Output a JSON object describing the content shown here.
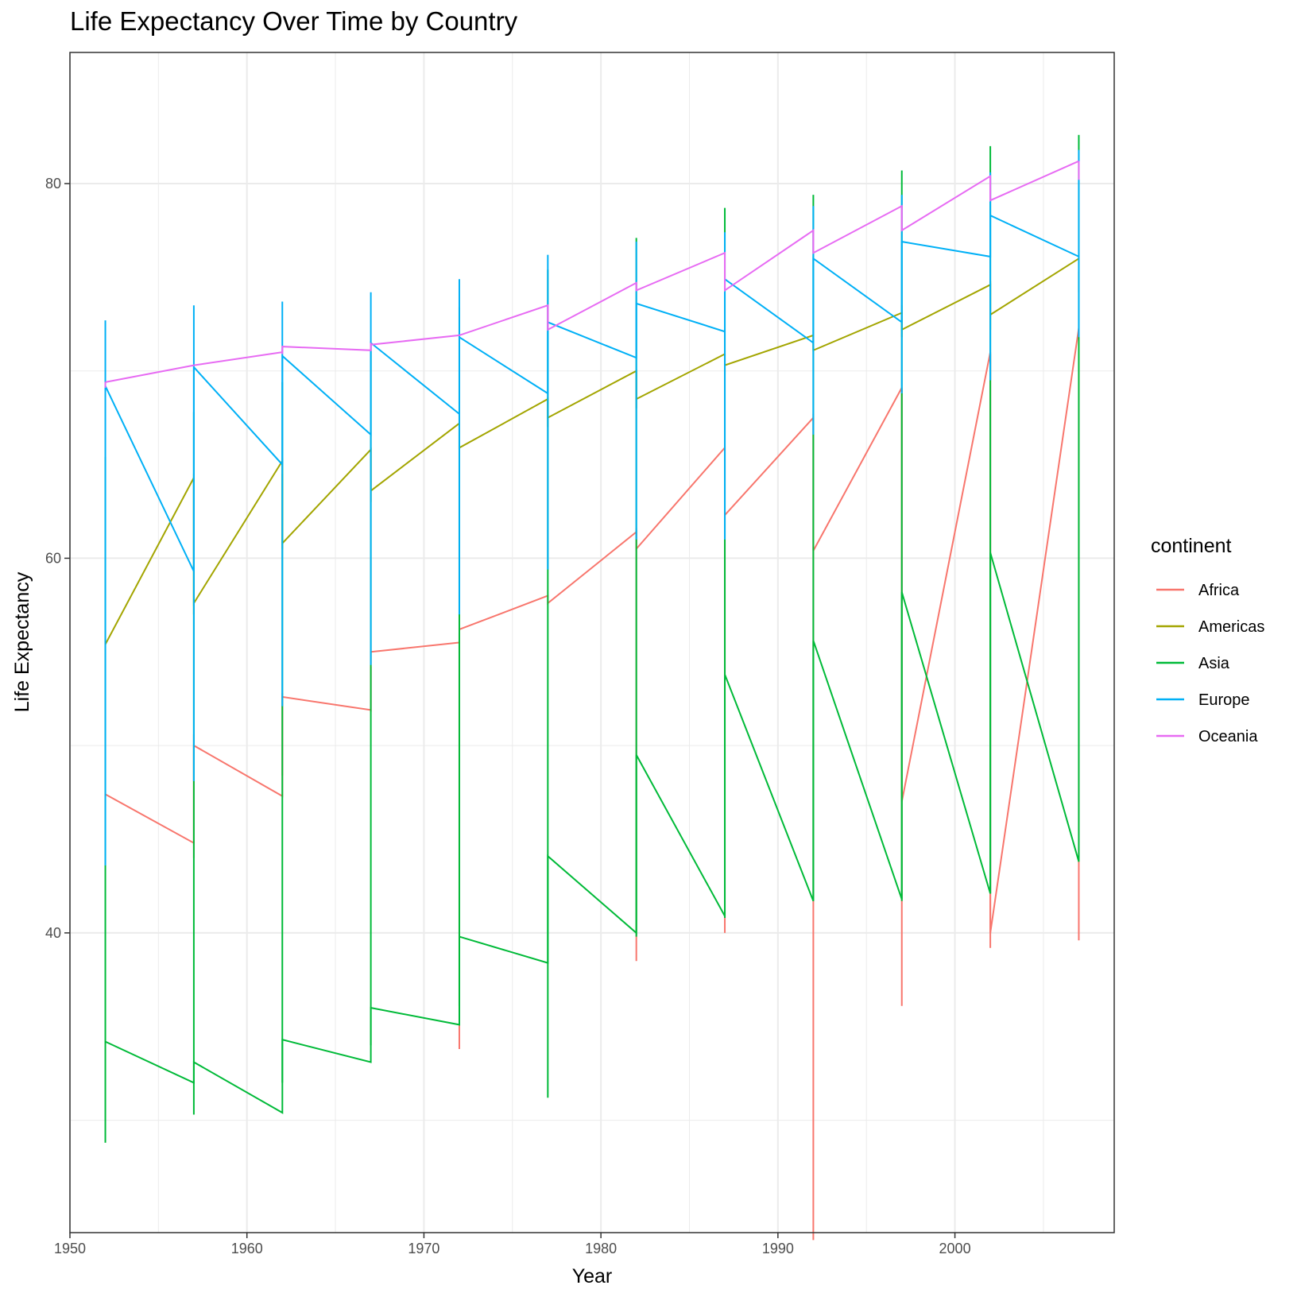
{
  "chart_data": {
    "type": "line",
    "title": "Life Expectancy Over Time by Country",
    "xlabel": "Year",
    "ylabel": "Life Expectancy",
    "xlim": [
      1950,
      2009
    ],
    "ylim": [
      24,
      87
    ],
    "x_ticks": [
      1950,
      1960,
      1970,
      1980,
      1990,
      2000
    ],
    "y_ticks": [
      40,
      60,
      80
    ],
    "grid": true,
    "legend": {
      "title": "continent",
      "position": "right"
    },
    "x": [
      1952,
      1957,
      1962,
      1967,
      1972,
      1977,
      1982,
      1987,
      1992,
      1997,
      2002,
      2007
    ],
    "series": [
      {
        "name": "Africa",
        "color": "#F8766D",
        "spans": [
          [
            47.0,
            47.0
          ],
          [
            44.0,
            50.6
          ],
          [
            48.4,
            52.8
          ],
          [
            51.8,
            54.2
          ],
          [
            33.8,
            56.0
          ],
          [
            57.6,
            57.6
          ],
          [
            38.5,
            61.6
          ],
          [
            40.0,
            66.0
          ],
          [
            23.6,
            67.7
          ],
          [
            36.1,
            69.0
          ],
          [
            39.2,
            70.9
          ],
          [
            39.6,
            72.3
          ]
        ],
        "path": [
          [
            1952,
            47.4
          ],
          [
            1957,
            44.8
          ],
          [
            1957,
            50.0
          ],
          [
            1962,
            47.3
          ],
          [
            1962,
            52.6
          ],
          [
            1967,
            51.9
          ],
          [
            1967,
            55.0
          ],
          [
            1972,
            55.5
          ],
          [
            1972,
            56.2
          ],
          [
            1977,
            58.0
          ],
          [
            1977,
            57.6
          ],
          [
            1982,
            61.4
          ],
          [
            1982,
            60.5
          ],
          [
            1987,
            65.9
          ],
          [
            1987,
            62.3
          ],
          [
            1992,
            67.5
          ],
          [
            1992,
            60.4
          ],
          [
            1997,
            69.1
          ],
          [
            1997,
            47.0
          ],
          [
            2002,
            71.0
          ],
          [
            2002,
            40.0
          ],
          [
            2007,
            72.3
          ],
          [
            2007,
            44.3
          ]
        ]
      },
      {
        "name": "Americas",
        "color": "#A3A500",
        "spans": [
          [
            54.5,
            54.5
          ],
          [
            57.0,
            64.5
          ],
          [
            60.5,
            64.5
          ],
          [
            63.0,
            65.9
          ],
          [
            65.8,
            67.2
          ],
          [
            67.0,
            68.6
          ],
          [
            68.0,
            70.0
          ],
          [
            69.8,
            70.9
          ],
          [
            71.1,
            71.6
          ],
          [
            71.8,
            73.5
          ],
          [
            72.2,
            74.8
          ],
          [
            74.2,
            75.3
          ]
        ],
        "path": [
          [
            1952,
            55.4
          ],
          [
            1957,
            64.3
          ],
          [
            1957,
            57.6
          ],
          [
            1962,
            65.2
          ],
          [
            1962,
            60.8
          ],
          [
            1967,
            65.8
          ],
          [
            1967,
            63.6
          ],
          [
            1972,
            67.2
          ],
          [
            1972,
            65.9
          ],
          [
            1977,
            68.5
          ],
          [
            1977,
            67.5
          ],
          [
            1982,
            70.0
          ],
          [
            1982,
            68.5
          ],
          [
            1987,
            70.9
          ],
          [
            1987,
            70.3
          ],
          [
            1992,
            71.9
          ],
          [
            1992,
            71.1
          ],
          [
            1997,
            73.1
          ],
          [
            1997,
            72.2
          ],
          [
            2002,
            74.6
          ],
          [
            2002,
            73.0
          ],
          [
            2007,
            76.0
          ]
        ]
      },
      {
        "name": "Asia",
        "color": "#00BA38",
        "spans": [
          [
            28.8,
            65.4
          ],
          [
            30.3,
            67.8
          ],
          [
            32.0,
            69.4
          ],
          [
            34.0,
            71.4
          ],
          [
            36.1,
            73.4
          ],
          [
            31.2,
            75.4
          ],
          [
            39.8,
            77.1
          ],
          [
            40.8,
            78.7
          ],
          [
            41.7,
            79.4
          ],
          [
            41.7,
            80.7
          ],
          [
            42.1,
            82.0
          ],
          [
            43.8,
            82.6
          ]
        ],
        "path": [
          [
            1952,
            34.2
          ],
          [
            1957,
            32.0
          ],
          [
            1957,
            33.1
          ],
          [
            1962,
            30.4
          ],
          [
            1962,
            34.3
          ],
          [
            1967,
            33.1
          ],
          [
            1967,
            36.0
          ],
          [
            1972,
            35.1
          ],
          [
            1972,
            39.8
          ],
          [
            1977,
            38.4
          ],
          [
            1977,
            44.1
          ],
          [
            1982,
            40.0
          ],
          [
            1982,
            49.5
          ],
          [
            1987,
            40.9
          ],
          [
            1987,
            53.8
          ],
          [
            1992,
            41.7
          ],
          [
            1992,
            55.6
          ],
          [
            1997,
            41.8
          ],
          [
            1997,
            58.2
          ],
          [
            2002,
            42.1
          ],
          [
            2002,
            60.3
          ],
          [
            2007,
            43.8
          ]
        ]
      },
      {
        "name": "Europe",
        "color": "#00B0F6",
        "spans": [
          [
            43.6,
            72.7
          ],
          [
            48.1,
            73.5
          ],
          [
            52.1,
            73.7
          ],
          [
            54.3,
            74.2
          ],
          [
            57.0,
            74.9
          ],
          [
            59.4,
            76.2
          ],
          [
            61.0,
            76.9
          ],
          [
            61.0,
            77.4
          ],
          [
            66.6,
            78.8
          ],
          [
            68.8,
            79.4
          ],
          [
            69.5,
            80.6
          ],
          [
            71.8,
            81.8
          ]
        ],
        "path": [
          [
            1952,
            69.2
          ],
          [
            1957,
            59.3
          ],
          [
            1957,
            70.2
          ],
          [
            1962,
            65.0
          ],
          [
            1962,
            70.8
          ],
          [
            1967,
            66.6
          ],
          [
            1967,
            71.5
          ],
          [
            1972,
            67.7
          ],
          [
            1972,
            71.8
          ],
          [
            1977,
            68.8
          ],
          [
            1977,
            72.6
          ],
          [
            1982,
            70.7
          ],
          [
            1982,
            73.6
          ],
          [
            1987,
            72.1
          ],
          [
            1987,
            74.9
          ],
          [
            1992,
            71.5
          ],
          [
            1992,
            76.0
          ],
          [
            1997,
            72.6
          ],
          [
            1997,
            76.9
          ],
          [
            2002,
            76.1
          ],
          [
            2002,
            78.3
          ],
          [
            2007,
            76.1
          ]
        ]
      },
      {
        "name": "Oceania",
        "color": "#E76BF3",
        "spans": [
          [
            69.1,
            69.4
          ],
          [
            70.3,
            70.3
          ],
          [
            70.9,
            71.2
          ],
          [
            71.1,
            71.5
          ],
          [
            71.9,
            71.9
          ],
          [
            72.2,
            73.5
          ],
          [
            74.3,
            74.7
          ],
          [
            74.3,
            76.3
          ],
          [
            76.3,
            77.5
          ],
          [
            77.5,
            78.8
          ],
          [
            79.1,
            80.4
          ],
          [
            80.2,
            81.2
          ]
        ],
        "path": [
          [
            1952,
            69.4
          ],
          [
            1957,
            70.3
          ],
          [
            1962,
            71.0
          ],
          [
            1962,
            71.3
          ],
          [
            1967,
            71.1
          ],
          [
            1967,
            71.4
          ],
          [
            1972,
            71.9
          ],
          [
            1977,
            73.5
          ],
          [
            1977,
            72.2
          ],
          [
            1982,
            74.7
          ],
          [
            1982,
            74.3
          ],
          [
            1987,
            76.3
          ],
          [
            1987,
            74.3
          ],
          [
            1992,
            77.5
          ],
          [
            1992,
            76.3
          ],
          [
            1997,
            78.8
          ],
          [
            1997,
            77.5
          ],
          [
            2002,
            80.4
          ],
          [
            2002,
            79.1
          ],
          [
            2007,
            81.2
          ]
        ]
      }
    ]
  }
}
